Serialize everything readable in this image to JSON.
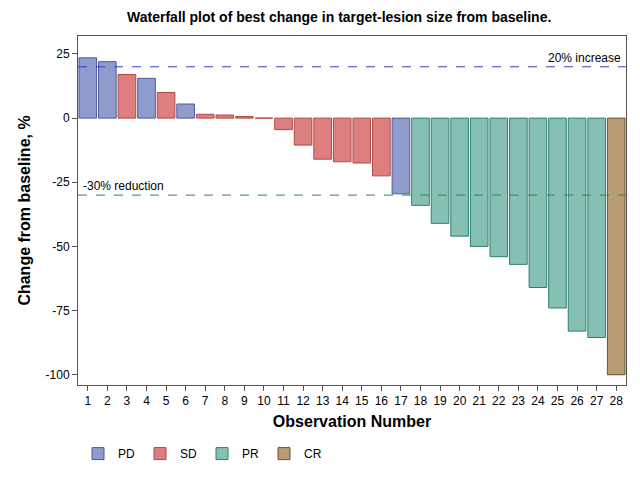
{
  "chart_data": {
    "type": "bar",
    "title": "Waterfall plot of best change in target-lesion size from baseline.",
    "x_label": "Observation Number",
    "y_label": "Change from baseline, %",
    "categories": [
      "1",
      "2",
      "3",
      "4",
      "5",
      "6",
      "7",
      "8",
      "9",
      "10",
      "11",
      "12",
      "13",
      "14",
      "15",
      "16",
      "17",
      "18",
      "19",
      "20",
      "21",
      "22",
      "23",
      "24",
      "25",
      "26",
      "27",
      "28"
    ],
    "series": [
      {
        "name": "PD",
        "color": "#8f9bcb",
        "edge_color": "#4b5a9b",
        "values": [
          23.5,
          22,
          null,
          15.5,
          null,
          5.5,
          null,
          null,
          null,
          null,
          null,
          null,
          null,
          null,
          null,
          null,
          -29.5,
          null,
          null,
          null,
          null,
          null,
          null,
          null,
          null,
          null,
          null,
          null
        ]
      },
      {
        "name": "SD",
        "color": "#de7f7f",
        "edge_color": "#b04848",
        "values": [
          null,
          null,
          17,
          null,
          10,
          null,
          1.5,
          1.2,
          0.6,
          0,
          -4.5,
          -10.5,
          -16,
          -17,
          -17.5,
          -22.5,
          null,
          null,
          null,
          null,
          null,
          null,
          null,
          null,
          null,
          null,
          null,
          null
        ]
      },
      {
        "name": "PR",
        "color": "#86c0b5",
        "edge_color": "#2e7f70",
        "values": [
          null,
          null,
          null,
          null,
          null,
          null,
          null,
          null,
          null,
          null,
          null,
          null,
          null,
          null,
          null,
          null,
          null,
          -34,
          -41,
          -46,
          -50,
          -54,
          -57,
          -66,
          -74,
          -83,
          -85.5,
          null
        ]
      },
      {
        "name": "CR",
        "color": "#b99b74",
        "edge_color": "#6e5334",
        "values": [
          null,
          null,
          null,
          null,
          null,
          null,
          null,
          null,
          null,
          null,
          null,
          null,
          null,
          null,
          null,
          null,
          null,
          null,
          null,
          null,
          null,
          null,
          null,
          null,
          null,
          null,
          null,
          -100
        ]
      }
    ],
    "reference_lines": [
      {
        "value": 20,
        "label": "20% increase",
        "color": "#3a3ad0",
        "line_style": "dash"
      },
      {
        "value": -30,
        "label": "-30% reduction",
        "color": "#2e8b3a",
        "line_style": "dash"
      }
    ],
    "ylim": [
      -104,
      32
    ],
    "yticks": [
      -100,
      -75,
      -50,
      -25,
      0,
      25
    ],
    "grid": false,
    "legend": "bottom left"
  }
}
